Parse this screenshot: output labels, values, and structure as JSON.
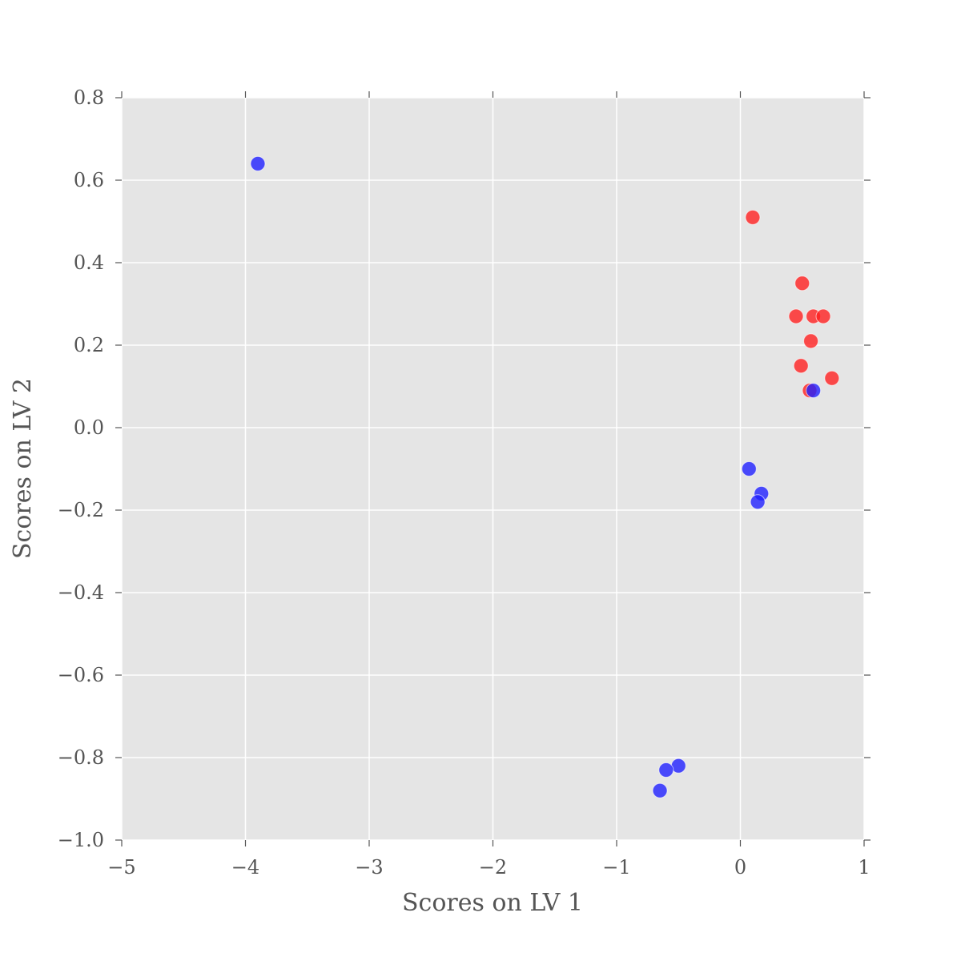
{
  "chart_data": {
    "type": "scatter",
    "title": "",
    "xlabel": "Scores on LV 1",
    "ylabel": "Scores on LV 2",
    "xlim": [
      -5,
      1
    ],
    "ylim": [
      -1.0,
      0.8
    ],
    "grid": true,
    "background": "#e5e5e5",
    "x_ticks": [
      -5,
      -4,
      -3,
      -2,
      -1,
      0,
      1
    ],
    "x_tick_labels": [
      "−5",
      "−4",
      "−3",
      "−2",
      "−1",
      "0",
      "1"
    ],
    "y_ticks": [
      0.8,
      0.6,
      0.4,
      0.2,
      0.0,
      -0.2,
      -0.4,
      -0.6,
      -0.8,
      -1.0
    ],
    "y_tick_labels": [
      "0.8",
      "0.6",
      "0.4",
      "0.2",
      "0.0",
      "−0.2",
      "−0.4",
      "−0.6",
      "−0.8",
      "−1.0"
    ],
    "series": [
      {
        "name": "red",
        "color": "#ff2020",
        "points": [
          {
            "x": 0.1,
            "y": 0.51
          },
          {
            "x": 0.5,
            "y": 0.35
          },
          {
            "x": 0.45,
            "y": 0.27
          },
          {
            "x": 0.59,
            "y": 0.27
          },
          {
            "x": 0.67,
            "y": 0.27
          },
          {
            "x": 0.57,
            "y": 0.21
          },
          {
            "x": 0.49,
            "y": 0.15
          },
          {
            "x": 0.74,
            "y": 0.12
          },
          {
            "x": 0.56,
            "y": 0.09
          }
        ]
      },
      {
        "name": "blue",
        "color": "#2020ff",
        "points": [
          {
            "x": -3.9,
            "y": 0.64
          },
          {
            "x": 0.59,
            "y": 0.09
          },
          {
            "x": 0.07,
            "y": -0.1
          },
          {
            "x": 0.17,
            "y": -0.16
          },
          {
            "x": 0.14,
            "y": -0.18
          },
          {
            "x": -0.5,
            "y": -0.82
          },
          {
            "x": -0.6,
            "y": -0.83
          },
          {
            "x": -0.65,
            "y": -0.88
          }
        ]
      }
    ]
  }
}
